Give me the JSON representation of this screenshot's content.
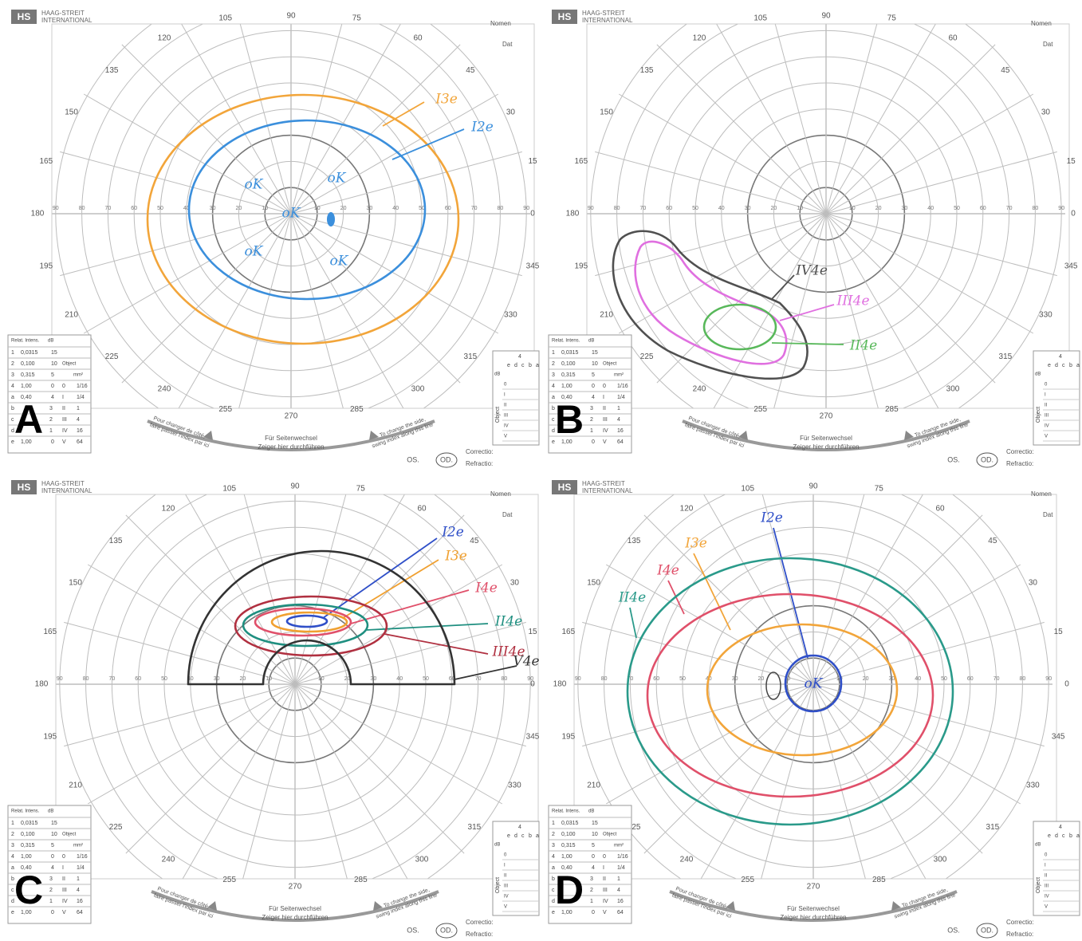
{
  "header": {
    "logo": "HS",
    "brand": [
      "HAAG-STREIT",
      "INTERNATIONAL"
    ],
    "fields": [
      "Nomen",
      "Dat"
    ]
  },
  "grid": {
    "angle_labels": [
      "0",
      "15",
      "30",
      "45",
      "60",
      "75",
      "90",
      "105",
      "120",
      "135",
      "150",
      "165",
      "180",
      "195",
      "210",
      "225",
      "240",
      "255",
      "270",
      "285",
      "300",
      "315",
      "330",
      "345"
    ],
    "eccentricity_labels": [
      "10",
      "20",
      "30",
      "40",
      "50",
      "60",
      "70",
      "80",
      "90"
    ]
  },
  "footer": {
    "center": [
      "Für Seitenwechsel",
      "Zeiger hier durchführen"
    ],
    "left": [
      "Pour changer de côté,",
      "faire passer l'index par ici"
    ],
    "right": [
      "To change the side,",
      "swing index along this line"
    ],
    "eyes": [
      "OS.",
      "OD."
    ],
    "correction": "Correctio:",
    "refraction": "Refractio:"
  },
  "intensity_table": {
    "header": [
      "Relat. Intens.",
      "dB"
    ],
    "rows": [
      [
        "1",
        "0,0315",
        "15"
      ],
      [
        "2",
        "0,100",
        "10"
      ],
      [
        "3",
        "0,315",
        "5"
      ],
      [
        "4",
        "1,00",
        "0"
      ],
      [
        "a",
        "0,40",
        "4"
      ],
      [
        "b",
        "3"
      ],
      [
        "c",
        "2"
      ],
      [
        "d",
        "1"
      ],
      [
        "e",
        "1,00",
        "0"
      ]
    ]
  },
  "object_table": {
    "header": [
      "Object",
      "mm²"
    ],
    "rows": [
      [
        "0",
        "1/16"
      ],
      [
        "I",
        "1/4"
      ],
      [
        "II",
        "1"
      ],
      [
        "III",
        "4"
      ],
      [
        "IV",
        "16"
      ],
      [
        "V",
        "64"
      ]
    ]
  },
  "filter_grid": {
    "top": "4",
    "letters": [
      "e",
      "d",
      "c",
      "b",
      "a"
    ],
    "db": "dB",
    "rows": [
      "0",
      "I",
      "II",
      "III",
      "IV",
      "V"
    ],
    "axis": "Object"
  },
  "panels": [
    {
      "label": "A",
      "isopters": [
        {
          "name": "I3e",
          "color": "#f2a53a"
        },
        {
          "name": "I2e",
          "color": "#3b8fdc"
        }
      ],
      "annotations": [
        "oK",
        "oK",
        "oK",
        "oK",
        "oK"
      ]
    },
    {
      "label": "B",
      "isopters": [
        {
          "name": "IV4e",
          "color": "#505050"
        },
        {
          "name": "III4e",
          "color": "#e070e0"
        },
        {
          "name": "II4e",
          "color": "#58b85a"
        }
      ]
    },
    {
      "label": "C",
      "isopters": [
        {
          "name": "I2e",
          "color": "#2f4fc8"
        },
        {
          "name": "I3e",
          "color": "#f0a030"
        },
        {
          "name": "I4e",
          "color": "#e0506a"
        },
        {
          "name": "II4e",
          "color": "#1f8f80"
        },
        {
          "name": "III4e",
          "color": "#b03040"
        },
        {
          "name": "V4e",
          "color": "#333333"
        }
      ]
    },
    {
      "label": "D",
      "isopters": [
        {
          "name": "I2e",
          "color": "#2f4fc8"
        },
        {
          "name": "I3e",
          "color": "#f2a53a"
        },
        {
          "name": "I4e",
          "color": "#e0506a"
        },
        {
          "name": "II4e",
          "color": "#2a9a8a"
        }
      ],
      "annotations": [
        "oK"
      ]
    }
  ]
}
